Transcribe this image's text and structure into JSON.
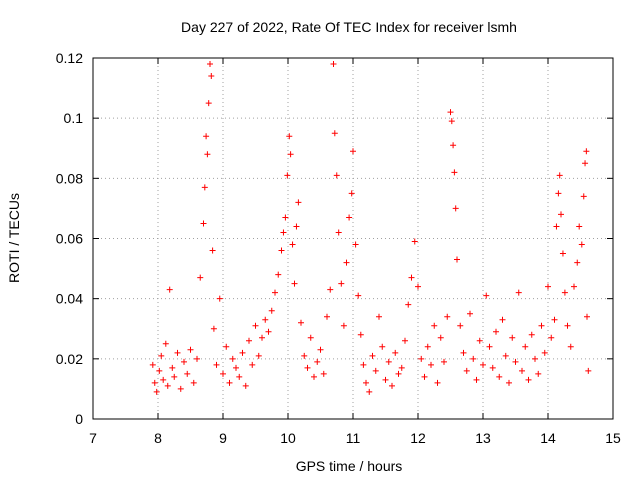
{
  "chart_data": {
    "type": "scatter",
    "title": "Day 227 of 2022, Rate Of TEC Index for receiver lsmh",
    "xlabel": "GPS time / hours",
    "ylabel": "ROTI / TECUs",
    "xlim": [
      7,
      15
    ],
    "ylim": [
      0,
      0.12
    ],
    "x_ticks": [
      7,
      8,
      9,
      10,
      11,
      12,
      13,
      14,
      15
    ],
    "x_tick_labels": [
      "7",
      "8",
      "9",
      "10",
      "11",
      "12",
      "13",
      "14",
      "15"
    ],
    "y_ticks": [
      0,
      0.02,
      0.04,
      0.06,
      0.08,
      0.1,
      0.12
    ],
    "y_tick_labels": [
      "0",
      "0.02",
      "0.04",
      "0.06",
      "0.08",
      "0.1",
      "0.12"
    ],
    "grid": true,
    "marker": "+",
    "series_color": "#ff0000",
    "series": [
      {
        "name": "ROTI",
        "points": [
          [
            7.92,
            0.018
          ],
          [
            7.95,
            0.012
          ],
          [
            7.98,
            0.009
          ],
          [
            8.02,
            0.016
          ],
          [
            8.05,
            0.021
          ],
          [
            8.08,
            0.013
          ],
          [
            8.12,
            0.025
          ],
          [
            8.15,
            0.011
          ],
          [
            8.18,
            0.043
          ],
          [
            8.22,
            0.017
          ],
          [
            8.25,
            0.014
          ],
          [
            8.3,
            0.022
          ],
          [
            8.35,
            0.01
          ],
          [
            8.4,
            0.019
          ],
          [
            8.45,
            0.015
          ],
          [
            8.5,
            0.023
          ],
          [
            8.55,
            0.012
          ],
          [
            8.6,
            0.02
          ],
          [
            8.65,
            0.047
          ],
          [
            8.7,
            0.065
          ],
          [
            8.72,
            0.077
          ],
          [
            8.74,
            0.094
          ],
          [
            8.76,
            0.088
          ],
          [
            8.78,
            0.105
          ],
          [
            8.8,
            0.118
          ],
          [
            8.82,
            0.114
          ],
          [
            8.84,
            0.056
          ],
          [
            8.86,
            0.03
          ],
          [
            8.9,
            0.018
          ],
          [
            8.95,
            0.04
          ],
          [
            9.0,
            0.015
          ],
          [
            9.05,
            0.024
          ],
          [
            9.1,
            0.012
          ],
          [
            9.15,
            0.02
          ],
          [
            9.2,
            0.017
          ],
          [
            9.25,
            0.014
          ],
          [
            9.3,
            0.022
          ],
          [
            9.35,
            0.011
          ],
          [
            9.4,
            0.026
          ],
          [
            9.45,
            0.018
          ],
          [
            9.5,
            0.031
          ],
          [
            9.55,
            0.021
          ],
          [
            9.6,
            0.027
          ],
          [
            9.65,
            0.033
          ],
          [
            9.7,
            0.029
          ],
          [
            9.75,
            0.036
          ],
          [
            9.8,
            0.042
          ],
          [
            9.85,
            0.048
          ],
          [
            9.9,
            0.056
          ],
          [
            9.93,
            0.062
          ],
          [
            9.96,
            0.067
          ],
          [
            9.99,
            0.081
          ],
          [
            10.02,
            0.094
          ],
          [
            10.04,
            0.088
          ],
          [
            10.07,
            0.058
          ],
          [
            10.1,
            0.045
          ],
          [
            10.13,
            0.064
          ],
          [
            10.16,
            0.072
          ],
          [
            10.2,
            0.032
          ],
          [
            10.25,
            0.021
          ],
          [
            10.3,
            0.017
          ],
          [
            10.35,
            0.027
          ],
          [
            10.4,
            0.014
          ],
          [
            10.45,
            0.019
          ],
          [
            10.5,
            0.023
          ],
          [
            10.55,
            0.015
          ],
          [
            10.6,
            0.034
          ],
          [
            10.65,
            0.043
          ],
          [
            10.7,
            0.118
          ],
          [
            10.72,
            0.095
          ],
          [
            10.75,
            0.081
          ],
          [
            10.78,
            0.062
          ],
          [
            10.82,
            0.045
          ],
          [
            10.86,
            0.031
          ],
          [
            10.9,
            0.052
          ],
          [
            10.94,
            0.067
          ],
          [
            10.98,
            0.075
          ],
          [
            11.0,
            0.089
          ],
          [
            11.04,
            0.058
          ],
          [
            11.08,
            0.041
          ],
          [
            11.12,
            0.028
          ],
          [
            11.16,
            0.018
          ],
          [
            11.2,
            0.012
          ],
          [
            11.25,
            0.009
          ],
          [
            11.3,
            0.021
          ],
          [
            11.35,
            0.016
          ],
          [
            11.4,
            0.034
          ],
          [
            11.45,
            0.024
          ],
          [
            11.5,
            0.013
          ],
          [
            11.55,
            0.019
          ],
          [
            11.6,
            0.011
          ],
          [
            11.65,
            0.022
          ],
          [
            11.7,
            0.015
          ],
          [
            11.75,
            0.017
          ],
          [
            11.8,
            0.026
          ],
          [
            11.85,
            0.038
          ],
          [
            11.9,
            0.047
          ],
          [
            11.95,
            0.059
          ],
          [
            12.0,
            0.044
          ],
          [
            12.05,
            0.02
          ],
          [
            12.1,
            0.014
          ],
          [
            12.15,
            0.024
          ],
          [
            12.2,
            0.018
          ],
          [
            12.25,
            0.031
          ],
          [
            12.3,
            0.012
          ],
          [
            12.35,
            0.027
          ],
          [
            12.4,
            0.019
          ],
          [
            12.45,
            0.034
          ],
          [
            12.5,
            0.102
          ],
          [
            12.52,
            0.099
          ],
          [
            12.54,
            0.091
          ],
          [
            12.56,
            0.082
          ],
          [
            12.58,
            0.07
          ],
          [
            12.6,
            0.053
          ],
          [
            12.65,
            0.031
          ],
          [
            12.7,
            0.022
          ],
          [
            12.75,
            0.016
          ],
          [
            12.8,
            0.035
          ],
          [
            12.85,
            0.02
          ],
          [
            12.9,
            0.013
          ],
          [
            12.95,
            0.026
          ],
          [
            13.0,
            0.018
          ],
          [
            13.05,
            0.041
          ],
          [
            13.1,
            0.024
          ],
          [
            13.15,
            0.017
          ],
          [
            13.2,
            0.029
          ],
          [
            13.25,
            0.014
          ],
          [
            13.3,
            0.033
          ],
          [
            13.35,
            0.021
          ],
          [
            13.4,
            0.012
          ],
          [
            13.45,
            0.027
          ],
          [
            13.5,
            0.019
          ],
          [
            13.55,
            0.042
          ],
          [
            13.6,
            0.016
          ],
          [
            13.65,
            0.024
          ],
          [
            13.7,
            0.013
          ],
          [
            13.75,
            0.028
          ],
          [
            13.8,
            0.02
          ],
          [
            13.85,
            0.015
          ],
          [
            13.9,
            0.031
          ],
          [
            13.95,
            0.022
          ],
          [
            14.0,
            0.044
          ],
          [
            14.05,
            0.027
          ],
          [
            14.1,
            0.033
          ],
          [
            14.13,
            0.064
          ],
          [
            14.16,
            0.075
          ],
          [
            14.18,
            0.081
          ],
          [
            14.2,
            0.068
          ],
          [
            14.23,
            0.055
          ],
          [
            14.26,
            0.042
          ],
          [
            14.3,
            0.031
          ],
          [
            14.35,
            0.024
          ],
          [
            14.4,
            0.044
          ],
          [
            14.45,
            0.052
          ],
          [
            14.48,
            0.064
          ],
          [
            14.52,
            0.058
          ],
          [
            14.55,
            0.074
          ],
          [
            14.57,
            0.085
          ],
          [
            14.59,
            0.089
          ],
          [
            14.6,
            0.034
          ],
          [
            14.62,
            0.016
          ]
        ]
      }
    ]
  }
}
